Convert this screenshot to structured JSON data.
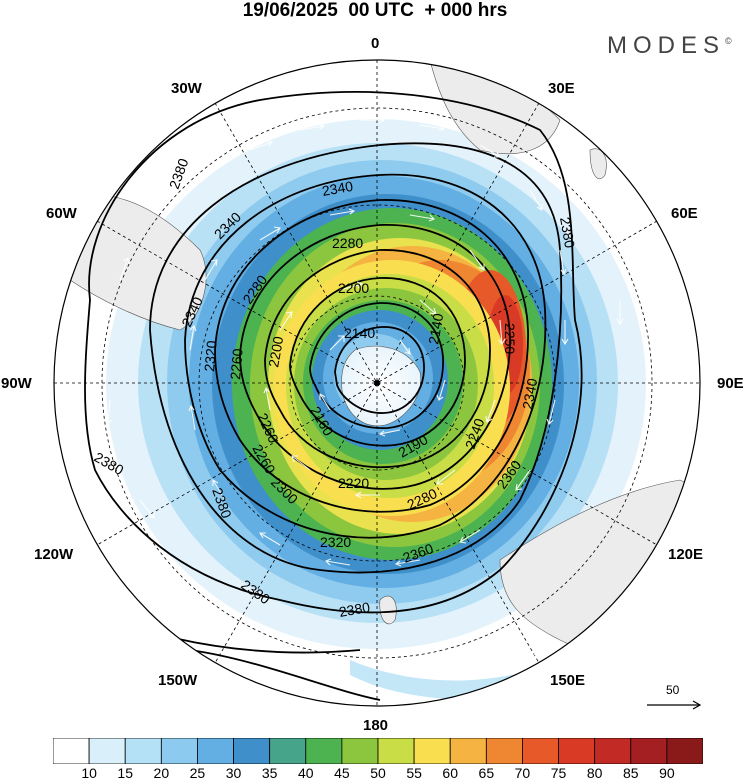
{
  "title": "19/06/2025  00 UTC  + 000 hrs",
  "brand": "MODES",
  "brand_mark": "©",
  "longitude_labels": {
    "n": "0",
    "ne30": "30E",
    "e60": "60E",
    "e90": "90E",
    "e120": "120E",
    "e150": "150E",
    "s": "180",
    "w150": "150W",
    "w120": "120W",
    "w90": "90W",
    "w60": "60W",
    "w30": "30W"
  },
  "contour_labels": [
    "2380",
    "2340",
    "2380",
    "2340",
    "2280",
    "2200",
    "2140",
    "2340",
    "2280",
    "2260",
    "2320",
    "2260",
    "2200",
    "2140",
    "2160",
    "2190",
    "2240",
    "2340",
    "2250",
    "2220",
    "2260",
    "2280",
    "2300",
    "2380",
    "2360",
    "2320",
    "2360",
    "2380",
    "2380",
    "2380"
  ],
  "reference_vector": {
    "label": "50"
  },
  "colorbar": {
    "ticks": [
      "10",
      "15",
      "20",
      "25",
      "30",
      "35",
      "40",
      "45",
      "50",
      "55",
      "60",
      "65",
      "70",
      "75",
      "80",
      "85",
      "90"
    ],
    "colors": [
      "#ffffff",
      "#d9f0fb",
      "#b5e1f6",
      "#8ccaef",
      "#63aee2",
      "#3f8fca",
      "#46a48a",
      "#4cb350",
      "#8cc63f",
      "#c9dd46",
      "#f9df4f",
      "#f5b341",
      "#ee8632",
      "#e8592a",
      "#d93a26",
      "#c22a25",
      "#a31f22",
      "#8a1a1a"
    ]
  }
}
